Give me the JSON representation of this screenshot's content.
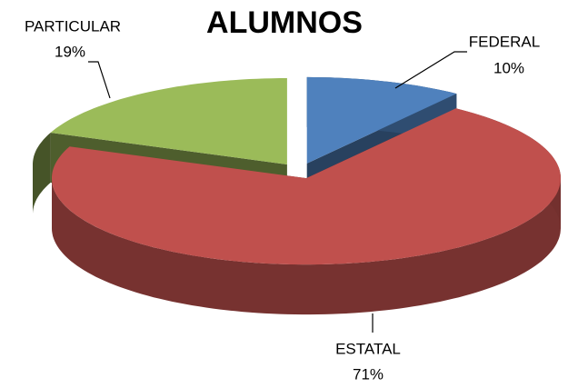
{
  "chart_data": {
    "type": "pie3d",
    "title": "ALUMNOS",
    "categories": [
      "FEDERAL",
      "ESTATAL",
      "PARTICULAR"
    ],
    "values": [
      10,
      71,
      19
    ],
    "value_labels": [
      "10%",
      "71%",
      "19%"
    ],
    "colors": [
      "#4f81bd",
      "#c0504d",
      "#9bbb59"
    ]
  }
}
